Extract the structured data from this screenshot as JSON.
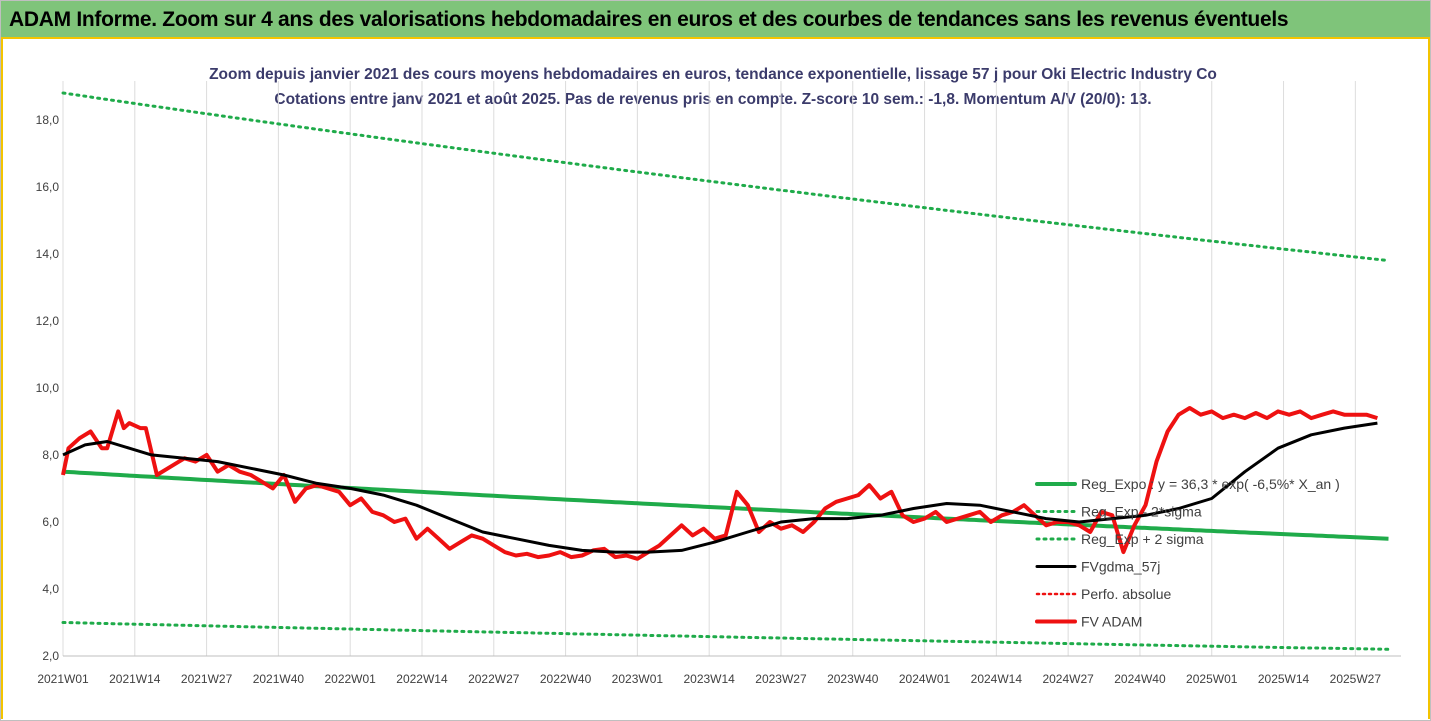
{
  "header": {
    "title": "ADAM Informe. Zoom sur 4 ans des valorisations hebdomadaires en euros et des courbes de tendances sans les revenus éventuels"
  },
  "colors": {
    "header_bg": "#7fc47a",
    "frame": "#f3c400",
    "reg_green": "#1fab4a",
    "fvadam_red": "#ee1111",
    "fvgdma_black": "#000000",
    "perfo_red": "#ee1111"
  },
  "chart_data": {
    "type": "line",
    "title": "Zoom depuis janvier 2021 des cours moyens hebdomadaires en euros, tendance exponentielle, lissage 57 j pour Oki Electric Industry Co",
    "subtitle": "Cotations entre janv 2021 et août 2025.  Pas de revenus pris en compte. Z-score 10 sem.: -1,8. Momentum A/V (20/0): 13.",
    "xlabel": "",
    "ylabel": "",
    "ylim": [
      2.0,
      18.8
    ],
    "yticks": [
      "2,0",
      "4,0",
      "6,0",
      "8,0",
      "10,0",
      "12,0",
      "14,0",
      "16,0",
      "18,0"
    ],
    "x_tick_labels": [
      "2021W01",
      "2021W14",
      "2021W27",
      "2021W40",
      "2022W01",
      "2022W14",
      "2022W27",
      "2022W40",
      "2023W01",
      "2023W14",
      "2023W27",
      "2023W40",
      "2024W01",
      "2024W14",
      "2024W27",
      "2024W40",
      "2025W01",
      "2025W14",
      "2025W27"
    ],
    "grid": "vertical",
    "legend_position": "right",
    "legend": [
      "Reg_Expo : y = 36,3 * exp( -6,5%*  X_an )",
      "Reg_Exp - 2*sigma",
      "Reg_Exp + 2 sigma",
      "FVgdma_57j",
      "Perfo. absolue",
      "FV ADAM"
    ],
    "series": [
      {
        "name": "Reg_Expo : y = 36,3 * exp( -6,5%*  X_an )",
        "style": "solid-green",
        "x": [
          "2021W01",
          "2025W34"
        ],
        "values": [
          7.5,
          5.5
        ],
        "shape": "exponential"
      },
      {
        "name": "Reg_Exp - 2*sigma",
        "style": "dotted-green",
        "x": [
          "2021W01",
          "2025W34"
        ],
        "values": [
          3.0,
          2.2
        ],
        "shape": "exponential"
      },
      {
        "name": "Reg_Exp + 2 sigma",
        "style": "dotted-green",
        "x": [
          "2021W01",
          "2025W34"
        ],
        "values": [
          18.8,
          13.8
        ],
        "shape": "exponential"
      },
      {
        "name": "FVgdma_57j",
        "style": "solid-black",
        "week_index": [
          0,
          4,
          8,
          12,
          16,
          22,
          28,
          34,
          40,
          46,
          52,
          58,
          64,
          70,
          76,
          82,
          88,
          94,
          100,
          106,
          112,
          118,
          124,
          130,
          136,
          142,
          148,
          154,
          160,
          166,
          172,
          178,
          184,
          190,
          196,
          202,
          208,
          214,
          220,
          226,
          232,
          238
        ],
        "values": [
          8.0,
          8.3,
          8.4,
          8.2,
          8.0,
          7.9,
          7.8,
          7.6,
          7.4,
          7.15,
          7.0,
          6.8,
          6.5,
          6.1,
          5.7,
          5.5,
          5.3,
          5.15,
          5.1,
          5.1,
          5.15,
          5.4,
          5.7,
          6.0,
          6.1,
          6.1,
          6.2,
          6.4,
          6.55,
          6.5,
          6.3,
          6.1,
          6.0,
          6.1,
          6.2,
          6.4,
          6.7,
          7.5,
          8.2,
          8.6,
          8.8,
          8.95
        ]
      },
      {
        "name": "FV ADAM",
        "style": "solid-red-thick",
        "week_index": [
          0,
          1,
          3,
          5,
          7,
          8,
          10,
          11,
          12,
          14,
          15,
          17,
          19,
          21,
          22,
          24,
          26,
          28,
          30,
          32,
          34,
          36,
          38,
          40,
          42,
          44,
          46,
          48,
          50,
          52,
          54,
          56,
          58,
          60,
          62,
          64,
          66,
          68,
          70,
          72,
          74,
          76,
          78,
          80,
          82,
          84,
          86,
          88,
          90,
          92,
          94,
          96,
          98,
          100,
          102,
          104,
          106,
          108,
          110,
          112,
          114,
          116,
          118,
          120,
          122,
          124,
          126,
          128,
          130,
          132,
          134,
          136,
          138,
          140,
          142,
          144,
          146,
          148,
          150,
          152,
          154,
          156,
          158,
          160,
          162,
          164,
          166,
          168,
          170,
          172,
          174,
          176,
          178,
          180,
          182,
          184,
          186,
          188,
          190,
          192,
          194,
          196,
          198,
          200,
          202,
          204,
          206,
          208,
          210,
          212,
          214,
          216,
          218,
          220,
          222,
          224,
          226,
          228,
          230,
          232,
          234,
          236,
          238
        ],
        "values": [
          7.4,
          8.2,
          8.5,
          8.7,
          8.2,
          8.2,
          9.3,
          8.8,
          8.95,
          8.8,
          8.8,
          7.4,
          7.6,
          7.8,
          7.9,
          7.8,
          8.0,
          7.5,
          7.7,
          7.5,
          7.4,
          7.2,
          7.0,
          7.4,
          6.6,
          7.0,
          7.1,
          7.0,
          6.9,
          6.5,
          6.7,
          6.3,
          6.2,
          6.0,
          6.1,
          5.5,
          5.8,
          5.5,
          5.2,
          5.4,
          5.6,
          5.5,
          5.3,
          5.1,
          5.0,
          5.05,
          4.95,
          5.0,
          5.1,
          4.95,
          5.0,
          5.15,
          5.2,
          4.95,
          5.0,
          4.9,
          5.1,
          5.3,
          5.6,
          5.9,
          5.6,
          5.8,
          5.5,
          5.6,
          6.9,
          6.5,
          5.7,
          6.0,
          5.8,
          5.9,
          5.7,
          6.0,
          6.4,
          6.6,
          6.7,
          6.8,
          7.1,
          6.7,
          6.9,
          6.2,
          6.0,
          6.1,
          6.3,
          6.0,
          6.1,
          6.2,
          6.3,
          6.0,
          6.2,
          6.3,
          6.5,
          6.2,
          5.9,
          6.0,
          6.0,
          5.9,
          5.7,
          6.3,
          6.2,
          5.1,
          5.9,
          6.5,
          7.8,
          8.7,
          9.2,
          9.4,
          9.2,
          9.3,
          9.1,
          9.2,
          9.1,
          9.25,
          9.1,
          9.3,
          9.2,
          9.3,
          9.1,
          9.2,
          9.3,
          9.2,
          9.2,
          9.2,
          9.1
        ]
      },
      {
        "name": "Perfo. absolue",
        "style": "dotted-red",
        "values": []
      }
    ]
  }
}
